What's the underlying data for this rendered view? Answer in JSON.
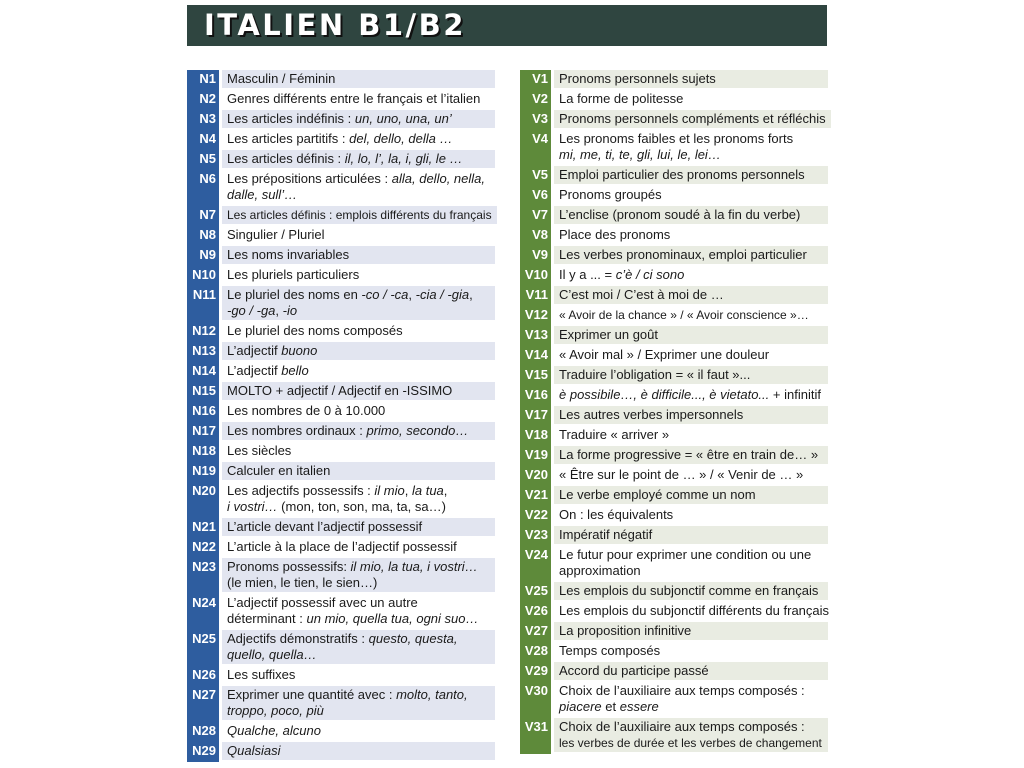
{
  "title": "ITALIEN B1/B2",
  "colors": {
    "title_bg": "#2f4540",
    "noms_accent": "#2e5d9f",
    "verbes_accent": "#5e8a3a",
    "noms_shade": "#e2e5f0",
    "verbes_shade": "#e9ece2"
  },
  "left": [
    {
      "n": "N1",
      "lines": [
        [
          {
            "t": "Masculin / Féminin"
          }
        ]
      ]
    },
    {
      "n": "N2",
      "lines": [
        [
          {
            "t": "Genres différents entre le français et l’italien"
          }
        ]
      ]
    },
    {
      "n": "N3",
      "lines": [
        [
          {
            "t": "Les articles indéfinis : "
          },
          {
            "t": "un, uno, una, un’",
            "i": true
          }
        ]
      ]
    },
    {
      "n": "N4",
      "lines": [
        [
          {
            "t": "Les articles partitifs : "
          },
          {
            "t": "del, dello, della …",
            "i": true
          }
        ]
      ]
    },
    {
      "n": "N5",
      "lines": [
        [
          {
            "t": "Les articles définis : "
          },
          {
            "t": "il, lo, l’, la, i, gli, le …",
            "i": true
          }
        ]
      ]
    },
    {
      "n": "N6",
      "lines": [
        [
          {
            "t": "Les prépositions articulées : "
          },
          {
            "t": "alla, dello, nella,",
            "i": true
          }
        ],
        [
          {
            "t": "dalle, sull’…",
            "i": true
          }
        ]
      ]
    },
    {
      "n": "N7",
      "small": true,
      "lines": [
        [
          {
            "t": "Les articles définis : emplois différents du français"
          }
        ]
      ]
    },
    {
      "n": "N8",
      "lines": [
        [
          {
            "t": "Singulier / Pluriel"
          }
        ]
      ]
    },
    {
      "n": "N9",
      "lines": [
        [
          {
            "t": "Les noms invariables"
          }
        ]
      ]
    },
    {
      "n": "N10",
      "lines": [
        [
          {
            "t": "Les pluriels particuliers"
          }
        ]
      ]
    },
    {
      "n": "N11",
      "lines": [
        [
          {
            "t": "Le pluriel des noms en "
          },
          {
            "t": "-co / -ca",
            "i": true
          },
          {
            "t": ", "
          },
          {
            "t": "-cia / -gia",
            "i": true
          },
          {
            "t": ","
          }
        ],
        [
          {
            "t": "-go / -ga",
            "i": true
          },
          {
            "t": ", "
          },
          {
            "t": "-io",
            "i": true
          }
        ]
      ]
    },
    {
      "n": "N12",
      "lines": [
        [
          {
            "t": "Le pluriel des noms composés"
          }
        ]
      ]
    },
    {
      "n": "N13",
      "lines": [
        [
          {
            "t": "L’adjectif "
          },
          {
            "t": "buono",
            "i": true
          }
        ]
      ]
    },
    {
      "n": "N14",
      "lines": [
        [
          {
            "t": "L’adjectif "
          },
          {
            "t": "bello",
            "i": true
          }
        ]
      ]
    },
    {
      "n": "N15",
      "lines": [
        [
          {
            "t": "MOLTO + adjectif / Adjectif en -ISSIMO"
          }
        ]
      ]
    },
    {
      "n": "N16",
      "lines": [
        [
          {
            "t": "Les nombres de 0 à 10.000"
          }
        ]
      ]
    },
    {
      "n": "N17",
      "lines": [
        [
          {
            "t": "Les nombres ordinaux : "
          },
          {
            "t": "primo, secondo…",
            "i": true
          }
        ]
      ]
    },
    {
      "n": "N18",
      "lines": [
        [
          {
            "t": "Les siècles"
          }
        ]
      ]
    },
    {
      "n": "N19",
      "lines": [
        [
          {
            "t": "Calculer en italien"
          }
        ]
      ]
    },
    {
      "n": "N20",
      "lines": [
        [
          {
            "t": "Les adjectifs possessifs : "
          },
          {
            "t": "il mio",
            "i": true
          },
          {
            "t": ", "
          },
          {
            "t": "la tua",
            "i": true
          },
          {
            "t": ","
          }
        ],
        [
          {
            "t": "i vostri…",
            "i": true
          },
          {
            "t": " (mon, ton, son, ma, ta, sa…)"
          }
        ]
      ]
    },
    {
      "n": "N21",
      "lines": [
        [
          {
            "t": "L’article devant l’adjectif possessif"
          }
        ]
      ]
    },
    {
      "n": "N22",
      "lines": [
        [
          {
            "t": "L’article à la place de l’adjectif possessif"
          }
        ]
      ]
    },
    {
      "n": "N23",
      "lines": [
        [
          {
            "t": "Pronoms possessifs: "
          },
          {
            "t": "il mio, la tua, i vostri…",
            "i": true
          }
        ],
        [
          {
            "t": "(le mien, le tien, le sien…)"
          }
        ]
      ]
    },
    {
      "n": "N24",
      "lines": [
        [
          {
            "t": "L’adjectif possessif avec un autre"
          }
        ],
        [
          {
            "t": "déterminant : "
          },
          {
            "t": "un mio, quella tua, ogni suo…",
            "i": true
          }
        ]
      ]
    },
    {
      "n": "N25",
      "lines": [
        [
          {
            "t": "Adjectifs démonstratifs : "
          },
          {
            "t": "questo, questa,",
            "i": true
          }
        ],
        [
          {
            "t": "quello, quella…",
            "i": true
          }
        ]
      ]
    },
    {
      "n": "N26",
      "lines": [
        [
          {
            "t": "Les suffixes"
          }
        ]
      ]
    },
    {
      "n": "N27",
      "lines": [
        [
          {
            "t": "Exprimer une quantité avec : "
          },
          {
            "t": "molto, tanto,",
            "i": true
          }
        ],
        [
          {
            "t": "troppo, poco, più",
            "i": true
          }
        ]
      ]
    },
    {
      "n": "N28",
      "lines": [
        [
          {
            "t": "Qualche, alcuno",
            "i": true
          }
        ]
      ]
    },
    {
      "n": "N29",
      "lines": [
        [
          {
            "t": "Qualsiasi",
            "i": true
          }
        ]
      ]
    }
  ],
  "right": [
    {
      "n": "V1",
      "lines": [
        [
          {
            "t": "Pronoms personnels sujets"
          }
        ]
      ]
    },
    {
      "n": "V2",
      "lines": [
        [
          {
            "t": "La forme de politesse"
          }
        ]
      ]
    },
    {
      "n": "V3",
      "lines": [
        [
          {
            "t": "Pronoms personnels compléments et réfléchis"
          }
        ]
      ]
    },
    {
      "n": "V4",
      "lines": [
        [
          {
            "t": "Les pronoms faibles et les pronoms forts"
          }
        ],
        [
          {
            "t": "mi, me, ti, te, gli, lui, le, lei…",
            "i": true
          }
        ]
      ]
    },
    {
      "n": "V5",
      "lines": [
        [
          {
            "t": "Emploi particulier des pronoms personnels"
          }
        ]
      ]
    },
    {
      "n": "V6",
      "lines": [
        [
          {
            "t": "Pronoms groupés"
          }
        ]
      ]
    },
    {
      "n": "V7",
      "lines": [
        [
          {
            "t": "L’enclise (pronom soudé à la fin du verbe)"
          }
        ]
      ]
    },
    {
      "n": "V8",
      "lines": [
        [
          {
            "t": "Place des pronoms"
          }
        ]
      ]
    },
    {
      "n": "V9",
      "lines": [
        [
          {
            "t": "Les verbes pronominaux, emploi particulier"
          }
        ]
      ]
    },
    {
      "n": "V10",
      "lines": [
        [
          {
            "t": "Il y a ... = "
          },
          {
            "t": "c’è / ci sono",
            "i": true
          }
        ]
      ]
    },
    {
      "n": "V11",
      "lines": [
        [
          {
            "t": "C’est moi / C’est à moi de …"
          }
        ]
      ]
    },
    {
      "n": "V12",
      "small": true,
      "lines": [
        [
          {
            "t": "« Avoir de la chance » / « Avoir conscience »…"
          }
        ]
      ]
    },
    {
      "n": "V13",
      "lines": [
        [
          {
            "t": "Exprimer un goût"
          }
        ]
      ]
    },
    {
      "n": "V14",
      "lines": [
        [
          {
            "t": "« Avoir mal » / Exprimer une douleur"
          }
        ]
      ]
    },
    {
      "n": "V15",
      "lines": [
        [
          {
            "t": "Traduire l’obligation = « il faut »..."
          }
        ]
      ]
    },
    {
      "n": "V16",
      "lines": [
        [
          {
            "t": "è possibile…, è difficile..., è vietato...",
            "i": true
          },
          {
            "t": " + infinitif"
          }
        ]
      ]
    },
    {
      "n": "V17",
      "lines": [
        [
          {
            "t": "Les autres verbes impersonnels"
          }
        ]
      ]
    },
    {
      "n": "V18",
      "lines": [
        [
          {
            "t": "Traduire « arriver »"
          }
        ]
      ]
    },
    {
      "n": "V19",
      "lines": [
        [
          {
            "t": "La forme progressive = « être en train de… »"
          }
        ]
      ]
    },
    {
      "n": "V20",
      "lines": [
        [
          {
            "t": "« Être sur le point de … » / « Venir de … »"
          }
        ]
      ]
    },
    {
      "n": "V21",
      "lines": [
        [
          {
            "t": "Le verbe employé comme un nom"
          }
        ]
      ]
    },
    {
      "n": "V22",
      "lines": [
        [
          {
            "t": "On : les équivalents"
          }
        ]
      ]
    },
    {
      "n": "V23",
      "lines": [
        [
          {
            "t": "Impératif négatif"
          }
        ]
      ]
    },
    {
      "n": "V24",
      "lines": [
        [
          {
            "t": "Le futur pour exprimer une condition ou une"
          }
        ],
        [
          {
            "t": "approximation"
          }
        ]
      ]
    },
    {
      "n": "V25",
      "lines": [
        [
          {
            "t": "Les emplois du subjonctif comme en français"
          }
        ]
      ]
    },
    {
      "n": "V26",
      "lines": [
        [
          {
            "t": "Les emplois du subjonctif différents du français"
          }
        ]
      ]
    },
    {
      "n": "V27",
      "lines": [
        [
          {
            "t": "La proposition infinitive"
          }
        ]
      ]
    },
    {
      "n": "V28",
      "lines": [
        [
          {
            "t": "Temps composés"
          }
        ]
      ]
    },
    {
      "n": "V29",
      "lines": [
        [
          {
            "t": "Accord du participe passé"
          }
        ]
      ]
    },
    {
      "n": "V30",
      "lines": [
        [
          {
            "t": "Choix de l’auxiliaire aux temps composés :"
          }
        ],
        [
          {
            "t": "piacere",
            "i": true
          },
          {
            "t": " et "
          },
          {
            "t": "essere",
            "i": true
          }
        ]
      ]
    },
    {
      "n": "V31",
      "lines": [
        [
          {
            "t": "Choix de l’auxiliaire aux temps composés :"
          }
        ],
        [
          {
            "t": "les verbes de durée et les verbes de changement",
            "small": true
          }
        ]
      ]
    }
  ]
}
